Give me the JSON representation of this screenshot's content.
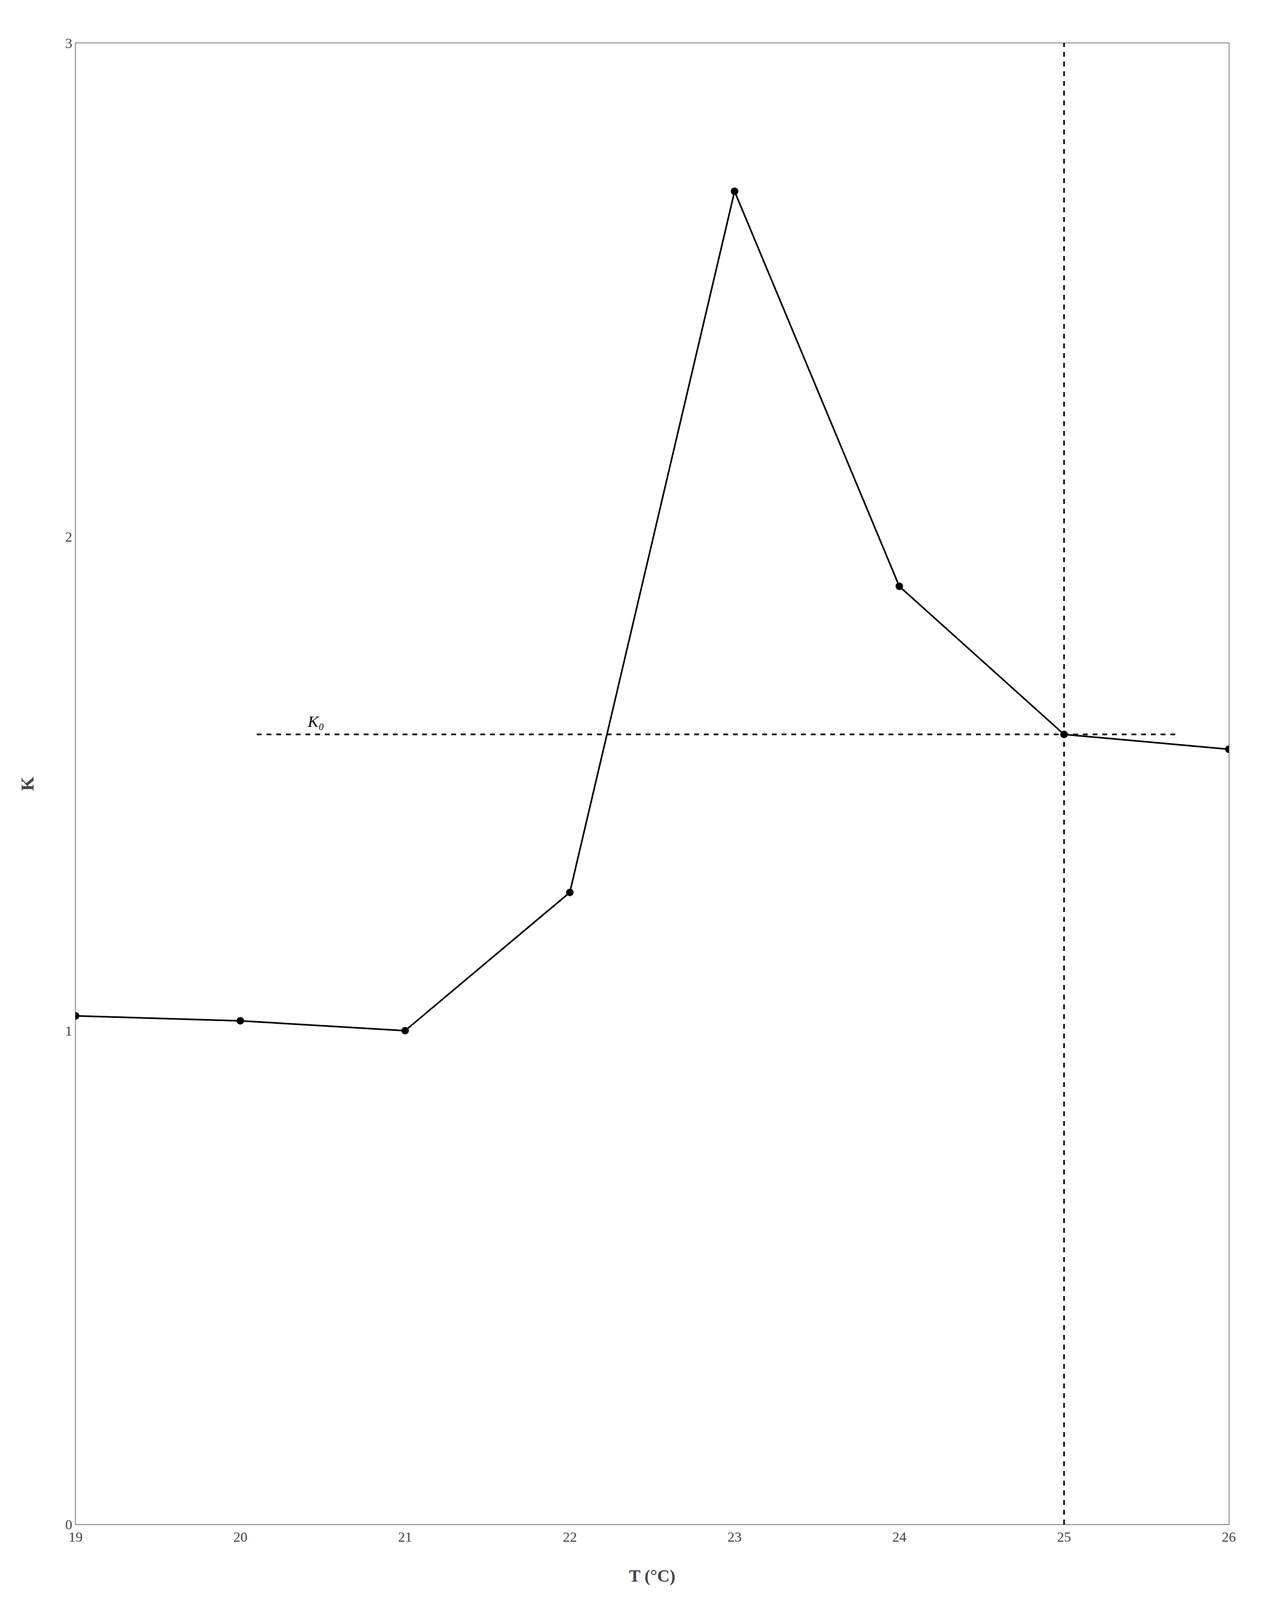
{
  "chart_data": {
    "type": "line",
    "xlabel": "T (°C)",
    "ylabel": "K",
    "xlim": [
      19,
      26
    ],
    "ylim": [
      0,
      3
    ],
    "xticks": [
      19,
      20,
      21,
      22,
      23,
      24,
      25,
      26
    ],
    "yticks": [
      0,
      1,
      2,
      3
    ],
    "grid": false,
    "series": [
      {
        "type": "line",
        "x": [
          19,
          20,
          21,
          22,
          23,
          24,
          25,
          26
        ],
        "values": [
          1.03,
          1.02,
          1.0,
          1.28,
          2.7,
          1.9,
          1.6,
          1.57
        ],
        "color": "#000000",
        "marker": "circle",
        "line_style": "solid"
      },
      {
        "type": "line",
        "x": [
          20.1,
          25.7
        ],
        "values": [
          1.6,
          1.6
        ],
        "color": "#000000",
        "line_style": "dashed"
      },
      {
        "type": "line",
        "x": [
          25,
          25
        ],
        "values": [
          0,
          3
        ],
        "color": "#000000",
        "line_style": "dashed"
      }
    ],
    "annotations": [
      {
        "text": "K₀",
        "x": 20.4,
        "y": 1.6
      }
    ]
  }
}
